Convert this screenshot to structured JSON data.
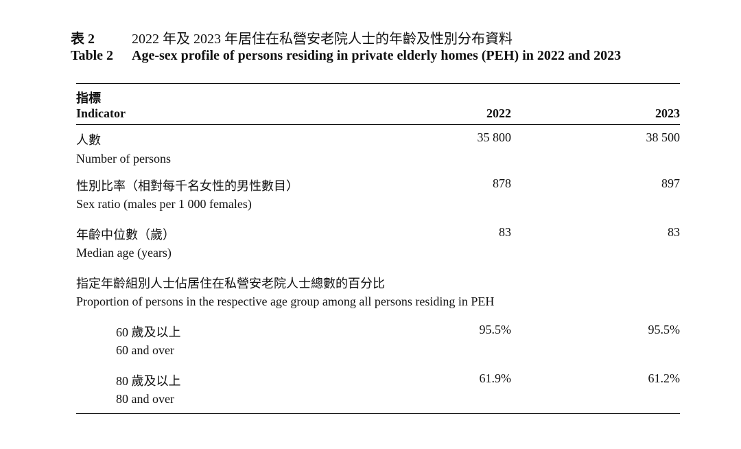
{
  "title": {
    "zh_label": "表 2",
    "zh_text": "2022 年及 2023 年居住在私營安老院人士的年齡及性別分布資料",
    "en_label": "Table 2",
    "en_text": "Age-sex profile of persons residing in private elderly homes (PEH) in 2022 and 2023"
  },
  "header": {
    "indicator_zh": "指標",
    "indicator_en": "Indicator",
    "col_2022": "2022",
    "col_2023": "2023"
  },
  "rows": [
    {
      "zh": "人數",
      "en": "Number of persons",
      "v2022": "35 800",
      "v2023": "38 500"
    },
    {
      "zh": "性別比率（相對每千名女性的男性數目）",
      "en": "Sex ratio (males per 1 000 females)",
      "v2022": "878",
      "v2023": "897"
    },
    {
      "zh": "年齡中位數（歲）",
      "en": "Median age (years)",
      "v2022": "83",
      "v2023": "83"
    },
    {
      "zh": "指定年齡組別人士佔居住在私營安老院人士總數的百分比",
      "en": "Proportion of persons in the respective age group among all persons residing in PEH"
    },
    {
      "zh": "60 歲及以上",
      "en": "60 and over",
      "v2022": "95.5%",
      "v2023": "95.5%"
    },
    {
      "zh": "80 歲及以上",
      "en": "80 and over",
      "v2022": "61.9%",
      "v2023": "61.2%"
    }
  ]
}
